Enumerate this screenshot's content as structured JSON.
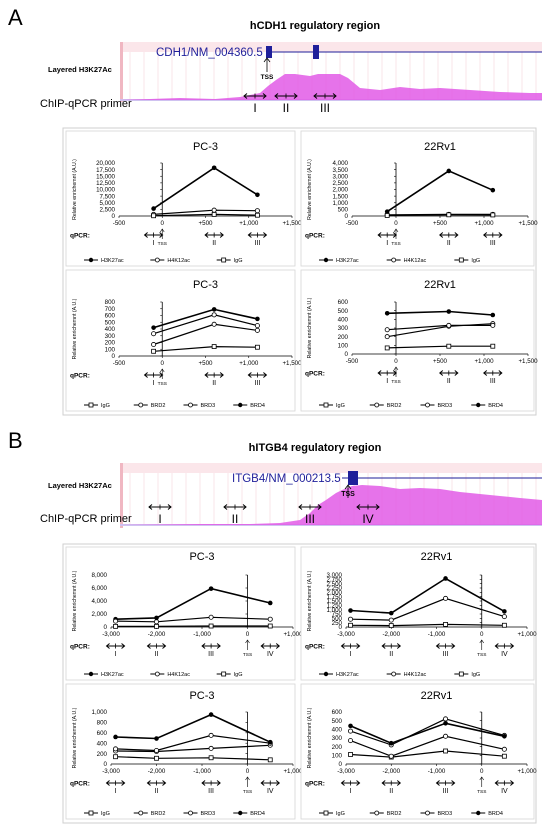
{
  "panels": {
    "A": {
      "letter": "A",
      "title": "hCDH1 regulatory region",
      "track_label": "Layered H3K27Ac",
      "gene_label": "CDH1/NM_004360.5",
      "tss_label": "TSS",
      "primer_row_label": "ChIP-qPCR primer",
      "primers": [
        "I",
        "II",
        "III"
      ]
    },
    "B": {
      "letter": "B",
      "title": "hITGB4 regulatory region",
      "track_label": "Layered H3K27Ac",
      "gene_label": "ITGB4/NM_000213.5",
      "tss_label": "TSS",
      "primer_row_label": "ChIP-qPCR primer",
      "primers": [
        "I",
        "II",
        "III",
        "IV"
      ]
    }
  },
  "common": {
    "ylabel": "Relative enrichemnt (A.U.)",
    "qpcr_label": "qPCR:",
    "tss_label": "TSS"
  },
  "colors": {
    "track_magenta": "#e25ae6",
    "track_lilac": "#b8a6ee",
    "gene_blue": "#1f1f9a",
    "header_pink": "#f0b7c2",
    "box_border": "#cfcfcf"
  },
  "chart_data": [
    {
      "id": "A1",
      "type": "line",
      "title": "PC-3",
      "ylabel": "Relative enrichemnt (A.U.)",
      "xlim": [
        -500,
        1500
      ],
      "ylim": [
        0,
        20000
      ],
      "xticks": [
        -500,
        0,
        500,
        1000,
        1500
      ],
      "xtick_labels": [
        "-500",
        "0",
        "+500",
        "+1,000",
        "+1,500"
      ],
      "yticks": [
        0,
        2500,
        5000,
        7500,
        10000,
        12500,
        15000,
        17500,
        20000
      ],
      "ytick_labels": [
        "0",
        "2,500",
        "5,000",
        "7,500",
        "10,000",
        "12,500",
        "15,000",
        "17,500",
        "20,000"
      ],
      "x": [
        -100,
        600,
        1100
      ],
      "primer_labels": [
        "I",
        "II",
        "III"
      ],
      "series": [
        {
          "name": "H3K27ac",
          "values": [
            2800,
            18200,
            8000
          ],
          "marker": "filled"
        },
        {
          "name": "H4K12ac",
          "values": [
            600,
            2200,
            2000
          ],
          "marker": "open-circle"
        },
        {
          "name": "IgG",
          "values": [
            100,
            600,
            300
          ],
          "marker": "open-square"
        }
      ]
    },
    {
      "id": "A2",
      "type": "line",
      "title": "22Rv1",
      "ylabel": "Relative enrichemnt (A.U.)",
      "xlim": [
        -500,
        1500
      ],
      "ylim": [
        0,
        4000
      ],
      "xticks": [
        -500,
        0,
        500,
        1000,
        1500
      ],
      "xtick_labels": [
        "-500",
        "0",
        "+500",
        "+1,000",
        "+1,500"
      ],
      "yticks": [
        0,
        500,
        1000,
        1500,
        2000,
        2500,
        3000,
        3500,
        4000
      ],
      "ytick_labels": [
        "0",
        "500",
        "1,000",
        "1,500",
        "2,000",
        "2,500",
        "3,000",
        "3,500",
        "4,000"
      ],
      "x": [
        -100,
        600,
        1100
      ],
      "primer_labels": [
        "I",
        "II",
        "III"
      ],
      "series": [
        {
          "name": "H3K27ac",
          "values": [
            330,
            3400,
            1950
          ],
          "marker": "filled"
        },
        {
          "name": "H4K12ac",
          "values": [
            80,
            120,
            120
          ],
          "marker": "open-circle"
        },
        {
          "name": "IgG",
          "values": [
            40,
            90,
            80
          ],
          "marker": "open-square"
        }
      ]
    },
    {
      "id": "A3",
      "type": "line",
      "title": "PC-3",
      "ylabel": "Relative enrichemnt (A.U.)",
      "xlim": [
        -500,
        1500
      ],
      "ylim": [
        0,
        800
      ],
      "xticks": [
        -500,
        0,
        500,
        1000,
        1500
      ],
      "xtick_labels": [
        "-500",
        "0",
        "+500",
        "+1,000",
        "+1,500"
      ],
      "yticks": [
        0,
        100,
        200,
        300,
        400,
        500,
        600,
        700,
        800
      ],
      "ytick_labels": [
        "0",
        "100",
        "200",
        "300",
        "400",
        "500",
        "600",
        "700",
        "800"
      ],
      "x": [
        -100,
        600,
        1100
      ],
      "primer_labels": [
        "I",
        "II",
        "III"
      ],
      "series": [
        {
          "name": "IgG",
          "values": [
            70,
            140,
            130
          ],
          "marker": "open-square"
        },
        {
          "name": "BRD2",
          "values": [
            170,
            470,
            380
          ],
          "marker": "open-circle"
        },
        {
          "name": "BRD3",
          "values": [
            330,
            610,
            450
          ],
          "marker": "open-circle"
        },
        {
          "name": "BRD4",
          "values": [
            420,
            690,
            550
          ],
          "marker": "filled"
        }
      ]
    },
    {
      "id": "A4",
      "type": "line",
      "title": "22Rv1",
      "ylabel": "Relative enrichemnt (A.U.)",
      "xlim": [
        -500,
        1500
      ],
      "ylim": [
        0,
        600
      ],
      "xticks": [
        -500,
        0,
        500,
        1000,
        1500
      ],
      "xtick_labels": [
        "-500",
        "0",
        "+500",
        "+1,000",
        "+1,500"
      ],
      "yticks": [
        0,
        100,
        200,
        300,
        400,
        500,
        600
      ],
      "ytick_labels": [
        "0",
        "100",
        "200",
        "300",
        "400",
        "500",
        "600"
      ],
      "x": [
        -100,
        600,
        1100
      ],
      "primer_labels": [
        "I",
        "II",
        "III"
      ],
      "series": [
        {
          "name": "IgG",
          "values": [
            70,
            90,
            90
          ],
          "marker": "open-square"
        },
        {
          "name": "BRD2",
          "values": [
            200,
            320,
            350
          ],
          "marker": "open-circle"
        },
        {
          "name": "BRD3",
          "values": [
            280,
            330,
            330
          ],
          "marker": "open-circle"
        },
        {
          "name": "BRD4",
          "values": [
            470,
            490,
            450
          ],
          "marker": "filled"
        }
      ]
    },
    {
      "id": "B1",
      "type": "line",
      "title": "PC-3",
      "ylabel": "Relative enrichemnt (A.U.)",
      "xlim": [
        -3000,
        1000
      ],
      "ylim": [
        0,
        8000
      ],
      "xticks": [
        -3000,
        -2000,
        -1000,
        0,
        1000
      ],
      "xtick_labels": [
        "-3,000",
        "-2,000",
        "-1,000",
        "0",
        "+1,000"
      ],
      "yticks": [
        0,
        2000,
        4000,
        6000,
        8000
      ],
      "ytick_labels": [
        "0",
        "2,000",
        "4,000",
        "6,000",
        "8,000"
      ],
      "x": [
        -2900,
        -2000,
        -800,
        500
      ],
      "primer_labels": [
        "I",
        "II",
        "III",
        "IV"
      ],
      "series": [
        {
          "name": "H3K27ac",
          "values": [
            1200,
            1400,
            5900,
            3700
          ],
          "marker": "filled"
        },
        {
          "name": "H4K12ac",
          "values": [
            900,
            800,
            1500,
            1200
          ],
          "marker": "open-circle"
        },
        {
          "name": "IgG",
          "values": [
            100,
            100,
            150,
            150
          ],
          "marker": "open-square"
        }
      ]
    },
    {
      "id": "B2",
      "type": "line",
      "title": "22Rv1",
      "ylabel": "Relative enrichemnt (A.U.)",
      "xlim": [
        -3000,
        1000
      ],
      "ylim": [
        0,
        3000
      ],
      "xticks": [
        -3000,
        -2000,
        -1000,
        0,
        1000
      ],
      "xtick_labels": [
        "-3,000",
        "-2,000",
        "-1,000",
        "0",
        "+1,000"
      ],
      "yticks": [
        0,
        250,
        500,
        750,
        1000,
        1250,
        1500,
        1750,
        2000,
        2250,
        2500,
        2750,
        3000
      ],
      "ytick_labels": [
        "0",
        "250",
        "500",
        "750",
        "1,000",
        "1,250",
        "1,500",
        "1,750",
        "2,000",
        "2,250",
        "2,500",
        "2,750",
        "3,000"
      ],
      "x": [
        -2900,
        -2000,
        -800,
        500
      ],
      "primer_labels": [
        "I",
        "II",
        "III",
        "IV"
      ],
      "series": [
        {
          "name": "H3K27ac",
          "values": [
            950,
            800,
            2800,
            900
          ],
          "marker": "filled"
        },
        {
          "name": "H4K12ac",
          "values": [
            450,
            400,
            1650,
            600
          ],
          "marker": "open-circle"
        },
        {
          "name": "IgG",
          "values": [
            100,
            80,
            150,
            100
          ],
          "marker": "open-square"
        }
      ]
    },
    {
      "id": "B3",
      "type": "line",
      "title": "PC-3",
      "ylabel": "Relative enrichemnt (A.U.)",
      "xlim": [
        -3000,
        1000
      ],
      "ylim": [
        0,
        1000
      ],
      "xticks": [
        -3000,
        -2000,
        -1000,
        0,
        1000
      ],
      "xtick_labels": [
        "-3,000",
        "-2,000",
        "-1,000",
        "0",
        "+1,000"
      ],
      "yticks": [
        0,
        200,
        400,
        600,
        800,
        1000
      ],
      "ytick_labels": [
        "0",
        "200",
        "400",
        "600",
        "800",
        "1,000"
      ],
      "x": [
        -2900,
        -2000,
        -800,
        500
      ],
      "primer_labels": [
        "I",
        "II",
        "III",
        "IV"
      ],
      "series": [
        {
          "name": "IgG",
          "values": [
            140,
            110,
            120,
            80
          ],
          "marker": "open-square"
        },
        {
          "name": "BRD2",
          "values": [
            250,
            240,
            300,
            360
          ],
          "marker": "open-circle"
        },
        {
          "name": "BRD3",
          "values": [
            290,
            260,
            550,
            400
          ],
          "marker": "open-circle"
        },
        {
          "name": "BRD4",
          "values": [
            520,
            490,
            950,
            420
          ],
          "marker": "filled"
        }
      ]
    },
    {
      "id": "B4",
      "type": "line",
      "title": "22Rv1",
      "ylabel": "Relative enrichemnt (A.U.)",
      "xlim": [
        -3000,
        1000
      ],
      "ylim": [
        0,
        600
      ],
      "xticks": [
        -3000,
        -2000,
        -1000,
        0,
        1000
      ],
      "xtick_labels": [
        "-3,000",
        "-2,000",
        "-1,000",
        "0",
        "+1,000"
      ],
      "yticks": [
        0,
        100,
        200,
        300,
        400,
        500,
        600
      ],
      "ytick_labels": [
        "0",
        "100",
        "200",
        "300",
        "400",
        "500",
        "600"
      ],
      "x": [
        -2900,
        -2000,
        -800,
        500
      ],
      "primer_labels": [
        "I",
        "II",
        "III",
        "IV"
      ],
      "series": [
        {
          "name": "IgG",
          "values": [
            110,
            80,
            150,
            90
          ],
          "marker": "open-square"
        },
        {
          "name": "BRD2",
          "values": [
            270,
            90,
            320,
            170
          ],
          "marker": "open-circle"
        },
        {
          "name": "BRD3",
          "values": [
            380,
            220,
            520,
            330
          ],
          "marker": "open-circle"
        },
        {
          "name": "BRD4",
          "values": [
            440,
            240,
            470,
            320
          ],
          "marker": "filled"
        }
      ]
    }
  ]
}
